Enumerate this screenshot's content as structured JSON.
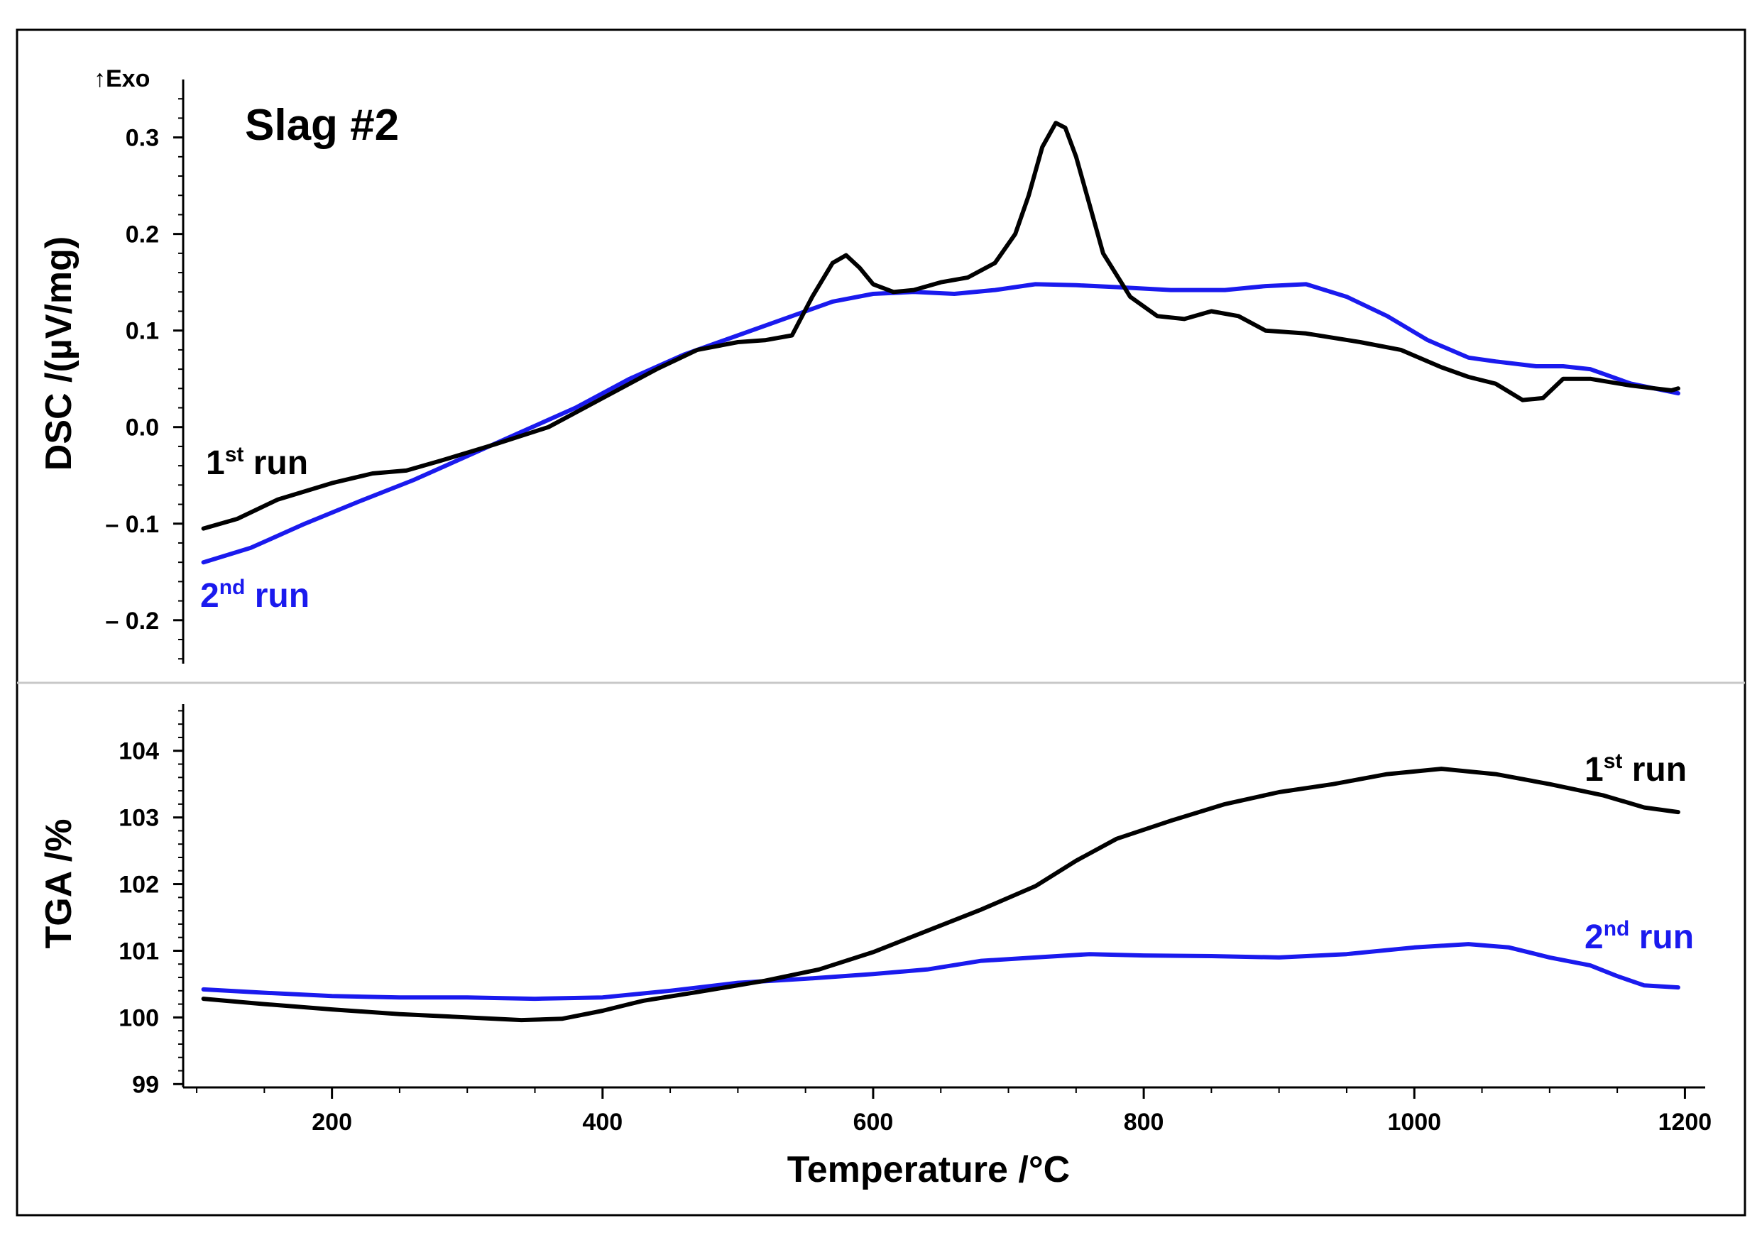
{
  "chart_data": [
    {
      "panel": "DSC",
      "type": "line",
      "title": "Slag #2",
      "exo_label": "↑Exo",
      "xlabel": "Temperature /°C",
      "ylabel": "DSC /(µV/mg)",
      "xlim": [
        90,
        1215
      ],
      "ylim": [
        -0.245,
        0.36
      ],
      "y_ticks": [
        0.3,
        0.2,
        0.1,
        0.0,
        -0.1,
        -0.2
      ],
      "y_tick_labels": [
        "0.3",
        "0.2",
        "0.1",
        "0.0",
        "– 0.1",
        "– 0.2"
      ],
      "series": [
        {
          "name": "1st run",
          "label_main": "1",
          "label_sup": "st",
          "label_rest": " run",
          "color": "#000000",
          "x": [
            105,
            130,
            160,
            200,
            230,
            255,
            280,
            320,
            360,
            400,
            440,
            470,
            500,
            520,
            540,
            555,
            570,
            580,
            590,
            600,
            615,
            630,
            650,
            670,
            690,
            705,
            715,
            725,
            735,
            742,
            750,
            760,
            770,
            790,
            810,
            830,
            850,
            870,
            890,
            920,
            960,
            990,
            1020,
            1040,
            1060,
            1080,
            1095,
            1110,
            1130,
            1160,
            1190,
            1195
          ],
          "y": [
            -0.105,
            -0.095,
            -0.075,
            -0.058,
            -0.048,
            -0.045,
            -0.035,
            -0.018,
            0.0,
            0.03,
            0.06,
            0.08,
            0.088,
            0.09,
            0.095,
            0.135,
            0.17,
            0.178,
            0.165,
            0.148,
            0.14,
            0.142,
            0.15,
            0.155,
            0.17,
            0.2,
            0.24,
            0.29,
            0.315,
            0.31,
            0.28,
            0.23,
            0.18,
            0.135,
            0.115,
            0.112,
            0.12,
            0.115,
            0.1,
            0.097,
            0.088,
            0.08,
            0.062,
            0.052,
            0.045,
            0.028,
            0.03,
            0.05,
            0.05,
            0.043,
            0.038,
            0.04
          ]
        },
        {
          "name": "2nd run",
          "label_main": "2",
          "label_sup": "nd",
          "label_rest": " run",
          "color": "#1a1aee",
          "x": [
            105,
            140,
            180,
            220,
            260,
            300,
            340,
            380,
            420,
            460,
            500,
            540,
            570,
            600,
            630,
            660,
            690,
            720,
            750,
            780,
            820,
            860,
            890,
            920,
            950,
            980,
            1010,
            1040,
            1060,
            1090,
            1110,
            1130,
            1160,
            1195
          ],
          "y": [
            -0.14,
            -0.125,
            -0.1,
            -0.077,
            -0.055,
            -0.03,
            -0.005,
            0.02,
            0.05,
            0.075,
            0.095,
            0.115,
            0.13,
            0.138,
            0.14,
            0.138,
            0.142,
            0.148,
            0.147,
            0.145,
            0.142,
            0.142,
            0.146,
            0.148,
            0.135,
            0.115,
            0.09,
            0.072,
            0.068,
            0.063,
            0.063,
            0.06,
            0.045,
            0.035
          ]
        }
      ]
    },
    {
      "panel": "TGA",
      "type": "line",
      "xlabel": "Temperature /°C",
      "ylabel": "TGA /%",
      "xlim": [
        90,
        1215
      ],
      "ylim": [
        98.95,
        104.7
      ],
      "x_ticks": [
        200,
        400,
        600,
        800,
        1000,
        1200
      ],
      "x_tick_labels": [
        "200",
        "400",
        "600",
        "800",
        "1000",
        "1200"
      ],
      "y_ticks": [
        104,
        103,
        102,
        101,
        100,
        99
      ],
      "y_tick_labels": [
        "104",
        "103",
        "102",
        "101",
        "100",
        "99"
      ],
      "series": [
        {
          "name": "1st run",
          "label_main": "1",
          "label_sup": "st",
          "label_rest": " run",
          "color": "#000000",
          "x": [
            105,
            150,
            200,
            250,
            300,
            340,
            370,
            400,
            430,
            470,
            520,
            560,
            600,
            640,
            680,
            720,
            750,
            780,
            820,
            860,
            900,
            940,
            980,
            1020,
            1060,
            1100,
            1140,
            1170,
            1195
          ],
          "y": [
            100.28,
            100.2,
            100.12,
            100.05,
            100.0,
            99.96,
            99.98,
            100.1,
            100.25,
            100.38,
            100.55,
            100.72,
            100.98,
            101.3,
            101.62,
            101.97,
            102.35,
            102.68,
            102.95,
            103.2,
            103.38,
            103.5,
            103.65,
            103.73,
            103.65,
            103.5,
            103.33,
            103.15,
            103.08
          ]
        },
        {
          "name": "2nd run",
          "label_main": "2",
          "label_sup": "nd",
          "label_rest": " run",
          "color": "#1a1aee",
          "x": [
            105,
            150,
            200,
            250,
            300,
            350,
            400,
            450,
            500,
            550,
            600,
            640,
            680,
            720,
            760,
            800,
            850,
            900,
            950,
            1000,
            1040,
            1070,
            1100,
            1130,
            1150,
            1170,
            1195
          ],
          "y": [
            100.42,
            100.37,
            100.32,
            100.3,
            100.3,
            100.28,
            100.3,
            100.4,
            100.52,
            100.58,
            100.65,
            100.72,
            100.85,
            100.9,
            100.95,
            100.93,
            100.92,
            100.9,
            100.95,
            101.05,
            101.1,
            101.05,
            100.9,
            100.78,
            100.62,
            100.48,
            100.45
          ]
        }
      ]
    }
  ]
}
